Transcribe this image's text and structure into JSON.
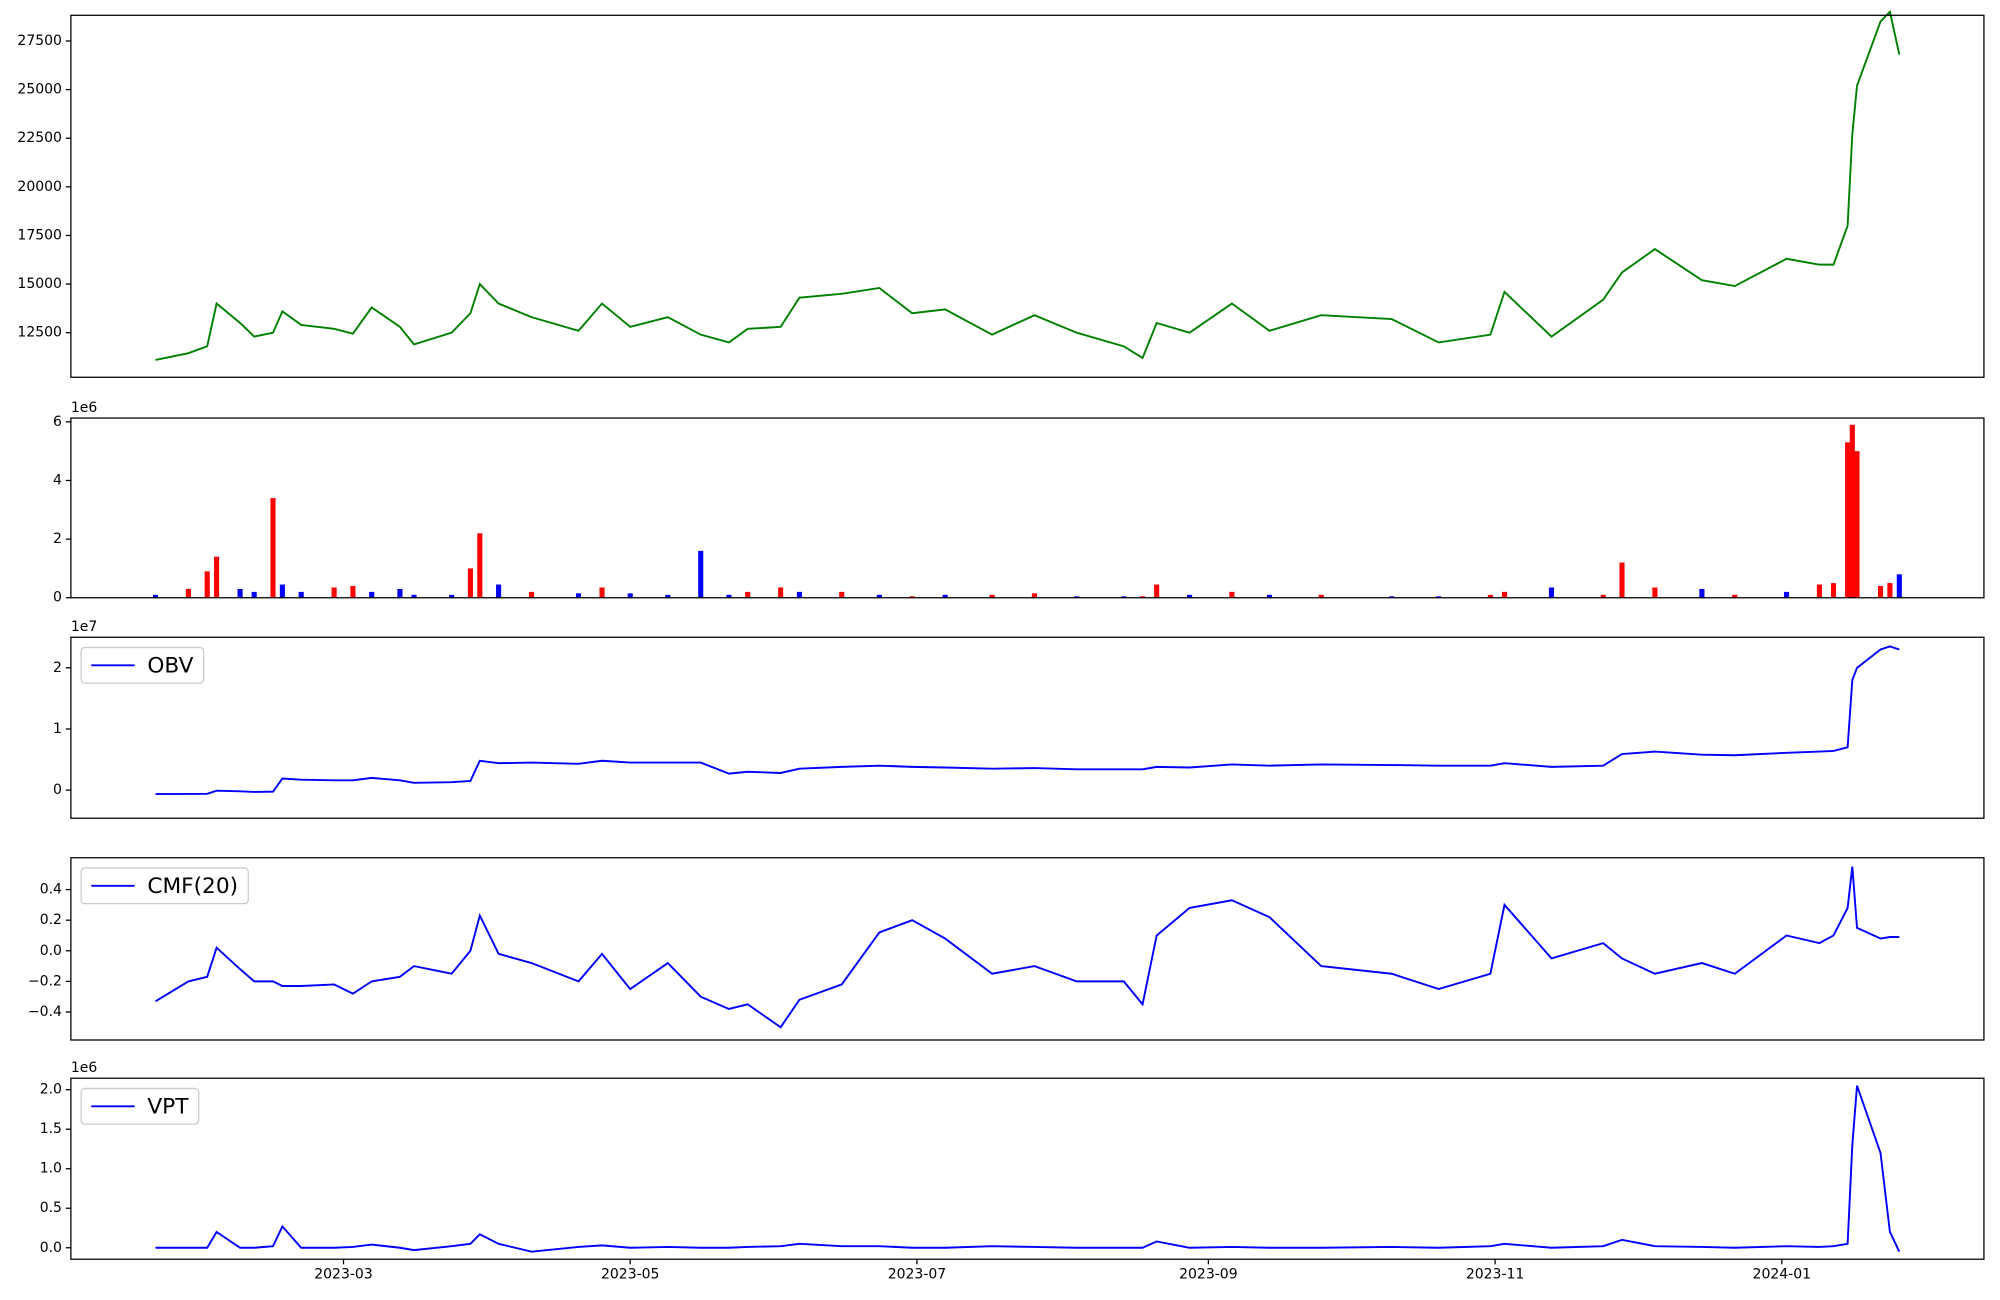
{
  "chart_data": [
    {
      "type": "line",
      "x": [
        "2023-01-20",
        "2023-01-27",
        "2023-01-31",
        "2023-02-02",
        "2023-02-07",
        "2023-02-10",
        "2023-02-14",
        "2023-02-16",
        "2023-02-20",
        "2023-02-27",
        "2023-03-03",
        "2023-03-07",
        "2023-03-13",
        "2023-03-16",
        "2023-03-24",
        "2023-03-28",
        "2023-03-30",
        "2023-04-03",
        "2023-04-10",
        "2023-04-20",
        "2023-04-25",
        "2023-05-01",
        "2023-05-09",
        "2023-05-16",
        "2023-05-22",
        "2023-05-26",
        "2023-06-02",
        "2023-06-06",
        "2023-06-15",
        "2023-06-23",
        "2023-06-30",
        "2023-07-07",
        "2023-07-17",
        "2023-07-26",
        "2023-08-04",
        "2023-08-14",
        "2023-08-18",
        "2023-08-21",
        "2023-08-28",
        "2023-09-06",
        "2023-09-14",
        "2023-09-25",
        "2023-10-10",
        "2023-10-20",
        "2023-10-31",
        "2023-11-03",
        "2023-11-13",
        "2023-11-24",
        "2023-11-28",
        "2023-12-05",
        "2023-12-15",
        "2023-12-22",
        "2024-01-02",
        "2024-01-09",
        "2024-01-12",
        "2024-01-15",
        "2024-01-16",
        "2024-01-17",
        "2024-01-22",
        "2024-01-24",
        "2024-01-26"
      ],
      "series": [
        {
          "color": "#008000",
          "values": [
            11100,
            11450,
            11800,
            14000,
            13000,
            12300,
            12500,
            13600,
            12900,
            12700,
            12450,
            13800,
            12800,
            11900,
            12500,
            13500,
            15000,
            14000,
            13300,
            12600,
            14000,
            12800,
            13300,
            12400,
            12000,
            12700,
            12800,
            14300,
            14500,
            14800,
            13500,
            13700,
            12400,
            13400,
            12500,
            11800,
            11200,
            13000,
            12500,
            14000,
            12600,
            13400,
            13200,
            12000,
            12400,
            14600,
            12300,
            14200,
            15600,
            16800,
            15200,
            14900,
            16300,
            16000,
            16000,
            18000,
            22700,
            25200,
            28500,
            29000,
            26800
          ]
        }
      ],
      "xlim": [
        "2023-01-02",
        "2024-02-13"
      ],
      "ylim": [
        10210,
        28820
      ],
      "yticks": [
        12500,
        15000,
        17500,
        20000,
        22500,
        25000,
        27500
      ]
    },
    {
      "type": "bar",
      "x": [
        "2023-01-20",
        "2023-01-27",
        "2023-01-31",
        "2023-02-02",
        "2023-02-07",
        "2023-02-10",
        "2023-02-14",
        "2023-02-16",
        "2023-02-20",
        "2023-02-27",
        "2023-03-03",
        "2023-03-07",
        "2023-03-13",
        "2023-03-16",
        "2023-03-24",
        "2023-03-28",
        "2023-03-30",
        "2023-04-03",
        "2023-04-10",
        "2023-04-20",
        "2023-04-25",
        "2023-05-01",
        "2023-05-09",
        "2023-05-16",
        "2023-05-22",
        "2023-05-26",
        "2023-06-02",
        "2023-06-06",
        "2023-06-15",
        "2023-06-23",
        "2023-06-30",
        "2023-07-07",
        "2023-07-17",
        "2023-07-26",
        "2023-08-04",
        "2023-08-14",
        "2023-08-18",
        "2023-08-21",
        "2023-08-28",
        "2023-09-06",
        "2023-09-14",
        "2023-09-25",
        "2023-10-10",
        "2023-10-20",
        "2023-10-31",
        "2023-11-03",
        "2023-11-13",
        "2023-11-24",
        "2023-11-28",
        "2023-12-05",
        "2023-12-15",
        "2023-12-22",
        "2024-01-02",
        "2024-01-09",
        "2024-01-12",
        "2024-01-15",
        "2024-01-16",
        "2024-01-17",
        "2024-01-22",
        "2024-01-24",
        "2024-01-26"
      ],
      "values": [
        0.1,
        0.3,
        0.9,
        1.4,
        0.3,
        0.2,
        3.4,
        0.45,
        0.2,
        0.35,
        0.4,
        0.2,
        0.3,
        0.1,
        0.1,
        1.0,
        2.2,
        0.45,
        0.2,
        0.15,
        0.35,
        0.15,
        0.1,
        1.6,
        0.1,
        0.2,
        0.35,
        0.2,
        0.2,
        0.1,
        0.05,
        0.1,
        0.1,
        0.15,
        0.05,
        0.05,
        0.05,
        0.45,
        0.1,
        0.2,
        0.1,
        0.1,
        0.05,
        0.05,
        0.1,
        0.2,
        0.35,
        0.1,
        1.2,
        0.35,
        0.3,
        0.1,
        0.2,
        0.45,
        0.5,
        5.3,
        5.9,
        5.0,
        0.4,
        0.5,
        0.8
      ],
      "colors": [
        "blue",
        "red",
        "red",
        "red",
        "blue",
        "blue",
        "red",
        "blue",
        "blue",
        "red",
        "red",
        "blue",
        "blue",
        "blue",
        "blue",
        "red",
        "red",
        "blue",
        "red",
        "blue",
        "red",
        "blue",
        "blue",
        "blue",
        "blue",
        "red",
        "red",
        "blue",
        "red",
        "blue",
        "red",
        "blue",
        "red",
        "red",
        "blue",
        "blue",
        "red",
        "red",
        "blue",
        "red",
        "blue",
        "red",
        "blue",
        "blue",
        "red",
        "red",
        "blue",
        "red",
        "red",
        "red",
        "blue",
        "red",
        "blue",
        "red",
        "red",
        "red",
        "red",
        "red",
        "red",
        "red",
        "blue"
      ],
      "offset_label": "1e6",
      "xlim": [
        "2023-01-02",
        "2024-02-13"
      ],
      "ylim": [
        0,
        6.13
      ],
      "yticks": [
        0,
        2,
        4,
        6
      ]
    },
    {
      "type": "line",
      "x": [
        "2023-01-20",
        "2023-01-27",
        "2023-01-31",
        "2023-02-02",
        "2023-02-07",
        "2023-02-10",
        "2023-02-14",
        "2023-02-16",
        "2023-02-20",
        "2023-02-27",
        "2023-03-03",
        "2023-03-07",
        "2023-03-13",
        "2023-03-16",
        "2023-03-24",
        "2023-03-28",
        "2023-03-30",
        "2023-04-03",
        "2023-04-10",
        "2023-04-20",
        "2023-04-25",
        "2023-05-01",
        "2023-05-09",
        "2023-05-16",
        "2023-05-22",
        "2023-05-26",
        "2023-06-02",
        "2023-06-06",
        "2023-06-15",
        "2023-06-23",
        "2023-06-30",
        "2023-07-07",
        "2023-07-17",
        "2023-07-26",
        "2023-08-04",
        "2023-08-14",
        "2023-08-18",
        "2023-08-21",
        "2023-08-28",
        "2023-09-06",
        "2023-09-14",
        "2023-09-25",
        "2023-10-10",
        "2023-10-20",
        "2023-10-31",
        "2023-11-03",
        "2023-11-13",
        "2023-11-24",
        "2023-11-28",
        "2023-12-05",
        "2023-12-15",
        "2023-12-22",
        "2024-01-02",
        "2024-01-09",
        "2024-01-12",
        "2024-01-15",
        "2024-01-16",
        "2024-01-17",
        "2024-01-22",
        "2024-01-24",
        "2024-01-26"
      ],
      "series": [
        {
          "name": "OBV",
          "color": "#0000ff",
          "values": [
            -0.065,
            -0.063,
            -0.06,
            -0.01,
            -0.02,
            -0.03,
            -0.025,
            0.19,
            0.17,
            0.16,
            0.16,
            0.2,
            0.16,
            0.12,
            0.13,
            0.15,
            0.48,
            0.44,
            0.45,
            0.43,
            0.48,
            0.45,
            0.45,
            0.45,
            0.27,
            0.3,
            0.28,
            0.35,
            0.38,
            0.4,
            0.38,
            0.37,
            0.35,
            0.36,
            0.34,
            0.34,
            0.34,
            0.38,
            0.37,
            0.42,
            0.4,
            0.42,
            0.41,
            0.4,
            0.4,
            0.44,
            0.38,
            0.4,
            0.59,
            0.63,
            0.58,
            0.57,
            0.61,
            0.63,
            0.64,
            0.7,
            1.8,
            2.0,
            2.3,
            2.35,
            2.3
          ]
        }
      ],
      "offset_label": "1e7",
      "legend": "upper left",
      "xlim": [
        "2023-01-02",
        "2024-02-13"
      ],
      "ylim": [
        -0.46,
        2.5
      ],
      "yticks": [
        0,
        1,
        2
      ]
    },
    {
      "type": "line",
      "x": [
        "2023-01-20",
        "2023-01-27",
        "2023-01-31",
        "2023-02-02",
        "2023-02-07",
        "2023-02-10",
        "2023-02-14",
        "2023-02-16",
        "2023-02-20",
        "2023-02-27",
        "2023-03-03",
        "2023-03-07",
        "2023-03-13",
        "2023-03-16",
        "2023-03-24",
        "2023-03-28",
        "2023-03-30",
        "2023-04-03",
        "2023-04-10",
        "2023-04-20",
        "2023-04-25",
        "2023-05-01",
        "2023-05-09",
        "2023-05-16",
        "2023-05-22",
        "2023-05-26",
        "2023-06-02",
        "2023-06-06",
        "2023-06-15",
        "2023-06-23",
        "2023-06-30",
        "2023-07-07",
        "2023-07-17",
        "2023-07-26",
        "2023-08-04",
        "2023-08-14",
        "2023-08-18",
        "2023-08-21",
        "2023-08-28",
        "2023-09-06",
        "2023-09-14",
        "2023-09-25",
        "2023-10-10",
        "2023-10-20",
        "2023-10-31",
        "2023-11-03",
        "2023-11-13",
        "2023-11-24",
        "2023-11-28",
        "2023-12-05",
        "2023-12-15",
        "2023-12-22",
        "2024-01-02",
        "2024-01-09",
        "2024-01-12",
        "2024-01-15",
        "2024-01-16",
        "2024-01-17",
        "2024-01-22",
        "2024-01-24",
        "2024-01-26"
      ],
      "series": [
        {
          "name": "CMF(20)",
          "color": "#0000ff",
          "values": [
            -0.33,
            -0.2,
            -0.17,
            0.02,
            -0.12,
            -0.2,
            -0.2,
            -0.23,
            -0.23,
            -0.22,
            -0.28,
            -0.2,
            -0.17,
            -0.1,
            -0.15,
            0.0,
            0.23,
            -0.02,
            -0.08,
            -0.2,
            -0.02,
            -0.25,
            -0.08,
            -0.3,
            -0.38,
            -0.35,
            -0.5,
            -0.32,
            -0.22,
            0.12,
            0.2,
            0.08,
            -0.15,
            -0.1,
            -0.2,
            -0.2,
            -0.35,
            0.1,
            0.28,
            0.33,
            0.22,
            -0.1,
            -0.15,
            -0.25,
            -0.15,
            0.3,
            -0.05,
            0.05,
            -0.05,
            -0.15,
            -0.08,
            -0.15,
            0.1,
            0.05,
            0.1,
            0.28,
            0.55,
            0.15,
            0.08,
            0.09,
            0.09
          ]
        }
      ],
      "legend": "upper left",
      "xlim": [
        "2023-01-02",
        "2024-02-13"
      ],
      "ylim": [
        -0.583,
        0.608
      ],
      "yticks": [
        {
          "value": -0.4,
          "label": "−0.4"
        },
        {
          "value": -0.2,
          "label": "−0.2"
        },
        {
          "value": 0,
          "label": "0.0"
        },
        0.2,
        0.4
      ]
    },
    {
      "type": "line",
      "x": [
        "2023-01-20",
        "2023-01-27",
        "2023-01-31",
        "2023-02-02",
        "2023-02-07",
        "2023-02-10",
        "2023-02-14",
        "2023-02-16",
        "2023-02-20",
        "2023-02-27",
        "2023-03-03",
        "2023-03-07",
        "2023-03-13",
        "2023-03-16",
        "2023-03-24",
        "2023-03-28",
        "2023-03-30",
        "2023-04-03",
        "2023-04-10",
        "2023-04-20",
        "2023-04-25",
        "2023-05-01",
        "2023-05-09",
        "2023-05-16",
        "2023-05-22",
        "2023-05-26",
        "2023-06-02",
        "2023-06-06",
        "2023-06-15",
        "2023-06-23",
        "2023-06-30",
        "2023-07-07",
        "2023-07-17",
        "2023-07-26",
        "2023-08-04",
        "2023-08-14",
        "2023-08-18",
        "2023-08-21",
        "2023-08-28",
        "2023-09-06",
        "2023-09-14",
        "2023-09-25",
        "2023-10-10",
        "2023-10-20",
        "2023-10-31",
        "2023-11-03",
        "2023-11-13",
        "2023-11-24",
        "2023-11-28",
        "2023-12-05",
        "2023-12-15",
        "2023-12-22",
        "2024-01-02",
        "2024-01-09",
        "2024-01-12",
        "2024-01-15",
        "2024-01-16",
        "2024-01-17",
        "2024-01-22",
        "2024-01-24",
        "2024-01-26"
      ],
      "series": [
        {
          "name": "VPT",
          "color": "#0000ff",
          "values": [
            0,
            0,
            0,
            0.2,
            0,
            0,
            0.02,
            0.27,
            0,
            0,
            0.01,
            0.04,
            0,
            -0.03,
            0.02,
            0.05,
            0.17,
            0.05,
            -0.05,
            0.01,
            0.03,
            0,
            0.01,
            0,
            0,
            0.01,
            0.02,
            0.05,
            0.02,
            0.02,
            0,
            0,
            0.02,
            0.01,
            0,
            0,
            0,
            0.08,
            0,
            0.01,
            0,
            0,
            0.01,
            0,
            0.02,
            0.05,
            0,
            0.02,
            0.1,
            0.02,
            0.01,
            0,
            0.02,
            0.01,
            0.02,
            0.05,
            1.3,
            2.05,
            1.2,
            0.2,
            -0.05
          ]
        }
      ],
      "offset_label": "1e6",
      "legend": "upper left",
      "xlim": [
        "2023-01-02",
        "2024-02-13"
      ],
      "ylim": [
        -0.145,
        2.145
      ],
      "yticks": [
        {
          "value": 0,
          "label": "0.0"
        },
        0.5,
        {
          "value": 1,
          "label": "1.0"
        },
        1.5,
        {
          "value": 2,
          "label": "2.0"
        }
      ],
      "xticks": [
        {
          "value": "2023-03-01",
          "label": "2023-03"
        },
        {
          "value": "2023-05-01",
          "label": "2023-05"
        },
        {
          "value": "2023-07-01",
          "label": "2023-07"
        },
        {
          "value": "2023-09-01",
          "label": "2023-09"
        },
        {
          "value": "2023-11-01",
          "label": "2023-11"
        },
        {
          "value": "2024-01-01",
          "label": "2024-01"
        }
      ]
    }
  ]
}
